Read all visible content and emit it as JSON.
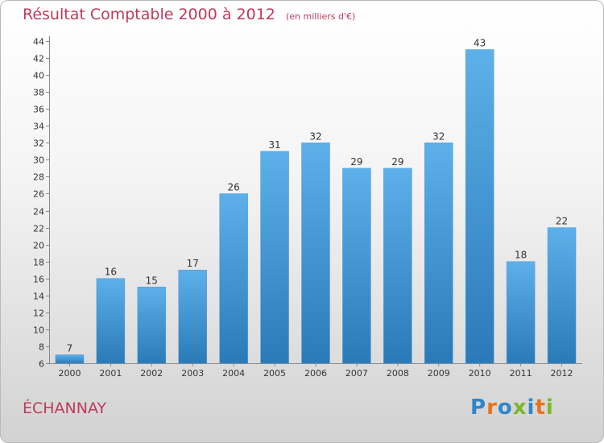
{
  "header": {
    "title": "Résultat Comptable 2000 à 2012",
    "subtitle": "(en milliers d'€)"
  },
  "footer": {
    "town": "ÉCHANNAY",
    "logo_text": "Proxiti"
  },
  "colors": {
    "title": "#c03a5c",
    "bar_top": "#5db0ea",
    "bar_bottom": "#2a7ab8",
    "logo_letters": [
      "#2f86c9",
      "#e8731e",
      "#2f86c9",
      "#7cb728",
      "#2f86c9",
      "#e8731e",
      "#7cb728"
    ]
  },
  "chart_data": {
    "type": "bar",
    "title": "Résultat Comptable 2000 à 2012",
    "subtitle": "(en milliers d'€)",
    "categories": [
      "2000",
      "2001",
      "2002",
      "2003",
      "2004",
      "2005",
      "2006",
      "2007",
      "2008",
      "2009",
      "2010",
      "2011",
      "2012"
    ],
    "values": [
      7,
      16,
      15,
      17,
      26,
      31,
      32,
      29,
      29,
      32,
      43,
      18,
      22
    ],
    "ylim": [
      6,
      44
    ],
    "yticks": [
      6,
      8,
      10,
      12,
      14,
      16,
      18,
      20,
      22,
      24,
      26,
      28,
      30,
      32,
      34,
      36,
      38,
      40,
      42,
      44
    ],
    "grid": false,
    "data_labels": true
  }
}
